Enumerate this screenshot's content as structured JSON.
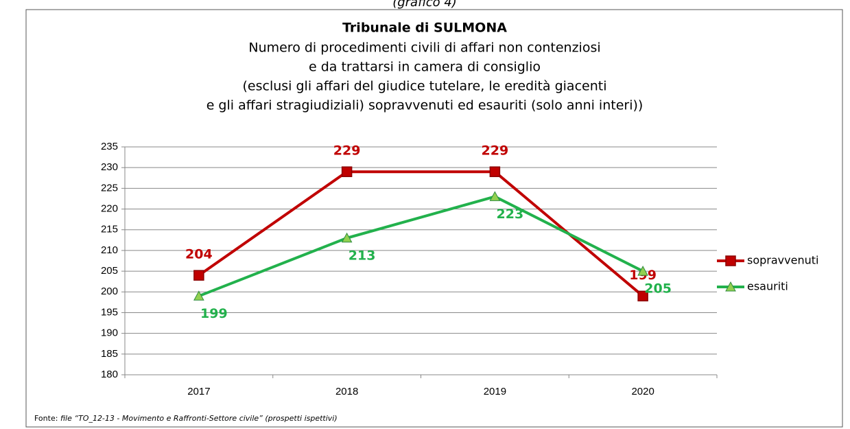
{
  "chart_data": {
    "type": "line",
    "caption": "(grafico 4)",
    "title": "Tribunale di SULMONA",
    "subtitle": [
      "Numero di procedimenti civili di affari non contenziosi",
      "e da trattarsi in camera di consiglio",
      "(esclusi gli affari del giudice tutelare, le eredità giacenti",
      "e gli affari stragiudiziali) sopravvenuti ed esauriti (solo anni interi))"
    ],
    "categories": [
      "2017",
      "2018",
      "2019",
      "2020"
    ],
    "series": [
      {
        "name": "sopravvenuti",
        "color": "#c00000",
        "values": [
          204,
          229,
          229,
          199
        ]
      },
      {
        "name": "esauriti",
        "color": "#22b14c",
        "values": [
          199,
          213,
          223,
          205
        ]
      }
    ],
    "ylim": [
      180,
      235
    ],
    "yticks": [
      180,
      185,
      190,
      195,
      200,
      205,
      210,
      215,
      220,
      225,
      230,
      235
    ],
    "grid": true,
    "legend": "right",
    "source": {
      "prefix": "Fonte:",
      "text": "file “TO_12-13 - Movimento e Raffronti-Settore civile” (prospetti ispettivi)"
    }
  }
}
